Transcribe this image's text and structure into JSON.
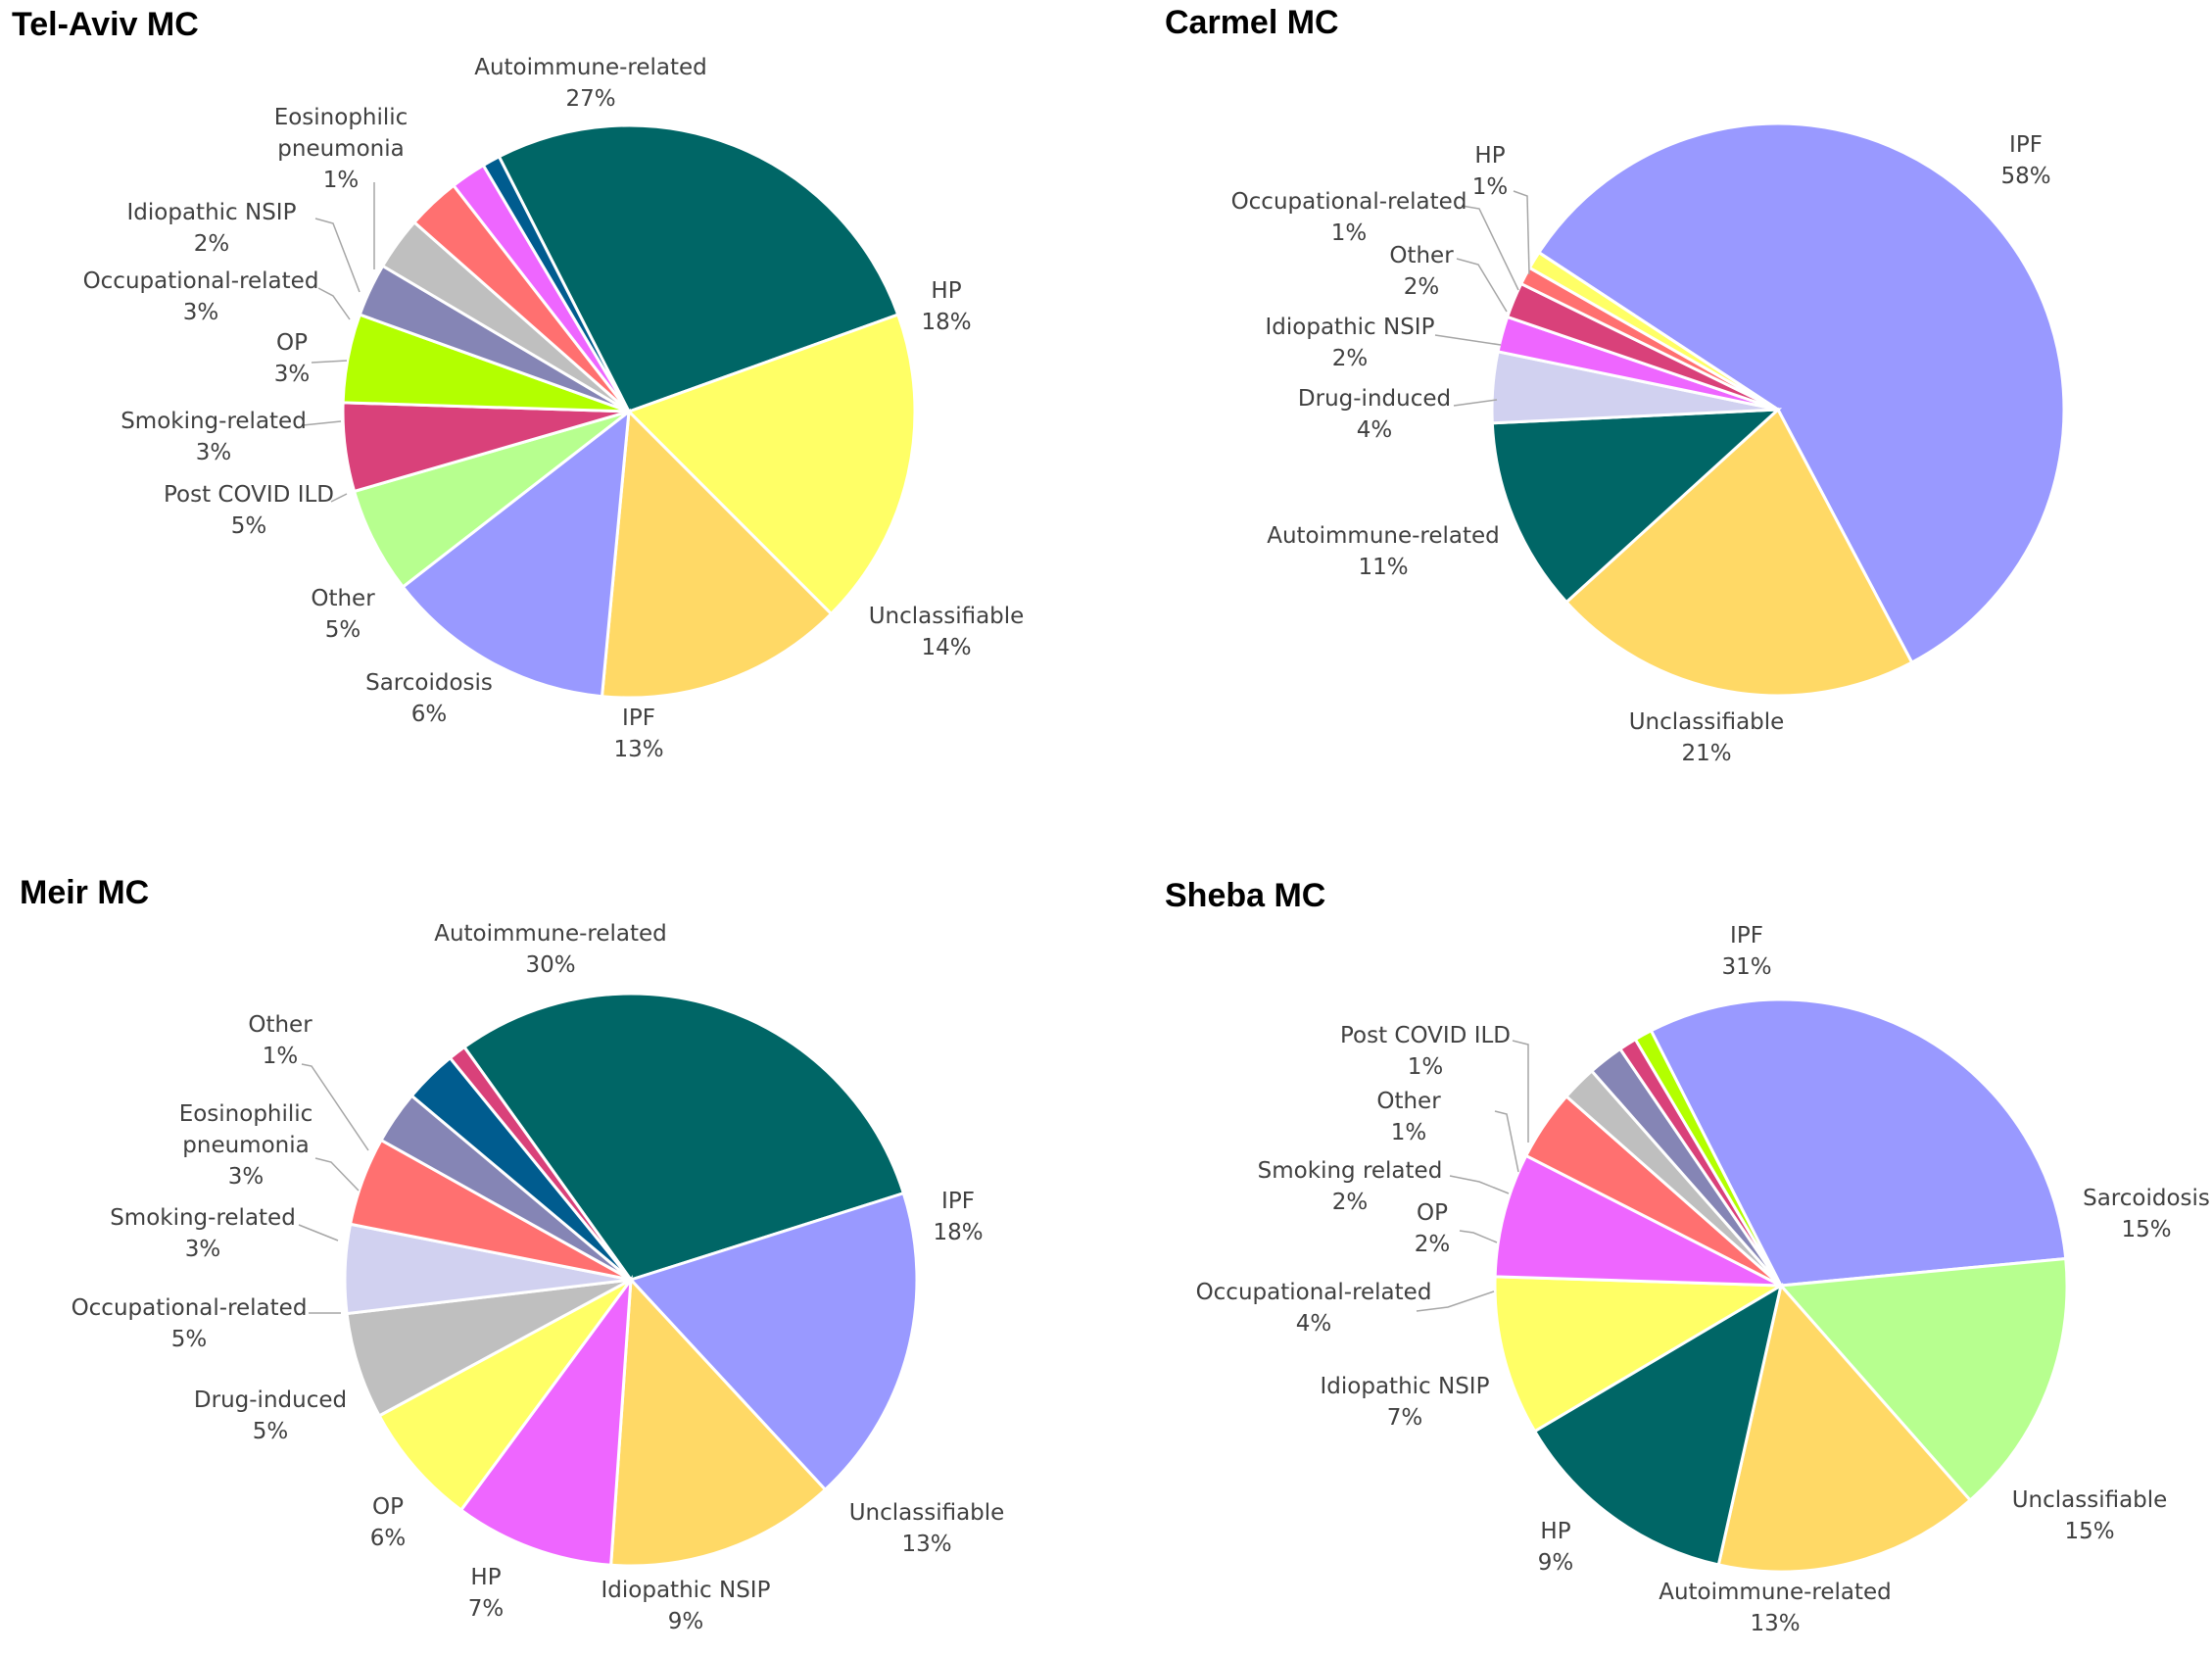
{
  "chart_data": [
    {
      "type": "pie",
      "title": "Tel-Aviv MC",
      "slices": [
        {
          "label": "Autoimmune-related",
          "value": 27,
          "percent": "27%",
          "color": "#006666"
        },
        {
          "label": "HP",
          "value": 18,
          "percent": "18%",
          "color": "#FFFF66"
        },
        {
          "label": "Unclassifiable",
          "value": 14,
          "percent": "14%",
          "color": "#FFD966"
        },
        {
          "label": "IPF",
          "value": 13,
          "percent": "13%",
          "color": "#9999FF"
        },
        {
          "label": "Sarcoidosis",
          "value": 6,
          "percent": "6%",
          "color": "#B7FF8F"
        },
        {
          "label": "Other",
          "value": 5,
          "percent": "5%",
          "color": "#D9417A"
        },
        {
          "label": "Post COVID ILD",
          "value": 5,
          "percent": "5%",
          "color": "#B3FF00"
        },
        {
          "label": "Smoking-related",
          "value": 3,
          "percent": "3%",
          "color": "#8585B5"
        },
        {
          "label": "OP",
          "value": 3,
          "percent": "3%",
          "color": "#BFBFBF"
        },
        {
          "label": "Occupational-related",
          "value": 3,
          "percent": "3%",
          "color": "#FF7070"
        },
        {
          "label": "Idiopathic NSIP",
          "value": 2,
          "percent": "2%",
          "color": "#EE66FF"
        },
        {
          "label": "Eosinophilic pneumonia",
          "label_lines": [
            "Eosinophilic",
            "pneumonia"
          ],
          "value": 1,
          "percent": "1%",
          "color": "#005C8F"
        }
      ]
    },
    {
      "type": "pie",
      "title": "Carmel MC",
      "slices": [
        {
          "label": "IPF",
          "value": 58,
          "percent": "58%",
          "color": "#9999FF"
        },
        {
          "label": "Unclassifiable",
          "value": 21,
          "percent": "21%",
          "color": "#FFD966"
        },
        {
          "label": "Autoimmune-related",
          "value": 11,
          "percent": "11%",
          "color": "#006666"
        },
        {
          "label": "Drug-induced",
          "value": 4,
          "percent": "4%",
          "color": "#D1D1F0"
        },
        {
          "label": "Idiopathic NSIP",
          "value": 2,
          "percent": "2%",
          "color": "#EE66FF"
        },
        {
          "label": "Other",
          "value": 2,
          "percent": "2%",
          "color": "#D9417A"
        },
        {
          "label": "Occupational-related",
          "value": 1,
          "percent": "1%",
          "color": "#FF7070"
        },
        {
          "label": "HP",
          "value": 1,
          "percent": "1%",
          "color": "#FFFF66"
        }
      ]
    },
    {
      "type": "pie",
      "title": "Meir MC",
      "slices": [
        {
          "label": "Autoimmune-related",
          "value": 30,
          "percent": "30%",
          "color": "#006666"
        },
        {
          "label": "IPF",
          "value": 18,
          "percent": "18%",
          "color": "#9999FF"
        },
        {
          "label": "Unclassifiable",
          "value": 13,
          "percent": "13%",
          "color": "#FFD966"
        },
        {
          "label": "Idiopathic NSIP",
          "value": 9,
          "percent": "9%",
          "color": "#EE66FF"
        },
        {
          "label": "HP",
          "value": 7,
          "percent": "7%",
          "color": "#FFFF66"
        },
        {
          "label": "OP",
          "value": 6,
          "percent": "6%",
          "color": "#BFBFBF"
        },
        {
          "label": "Drug-induced",
          "value": 5,
          "percent": "5%",
          "color": "#D1D1F0"
        },
        {
          "label": "Occupational-related",
          "value": 5,
          "percent": "5%",
          "color": "#FF7070"
        },
        {
          "label": "Smoking-related",
          "value": 3,
          "percent": "3%",
          "color": "#8585B5"
        },
        {
          "label": "Eosinophilic pneumonia",
          "label_lines": [
            "Eosinophilic",
            "pneumonia"
          ],
          "value": 3,
          "percent": "3%",
          "color": "#005C8F"
        },
        {
          "label": "Other",
          "value": 1,
          "percent": "1%",
          "color": "#D9417A"
        }
      ]
    },
    {
      "type": "pie",
      "title": "Sheba MC",
      "slices": [
        {
          "label": "IPF",
          "value": 31,
          "percent": "31%",
          "color": "#9999FF"
        },
        {
          "label": "Sarcoidosis",
          "value": 15,
          "percent": "15%",
          "color": "#B7FF8F"
        },
        {
          "label": "Unclassifiable",
          "value": 15,
          "percent": "15%",
          "color": "#FFD966"
        },
        {
          "label": "Autoimmune-related",
          "value": 13,
          "percent": "13%",
          "color": "#006666"
        },
        {
          "label": "HP",
          "value": 9,
          "percent": "9%",
          "color": "#FFFF66"
        },
        {
          "label": "Idiopathic NSIP",
          "value": 7,
          "percent": "7%",
          "color": "#EE66FF"
        },
        {
          "label": "Occupational-related",
          "value": 4,
          "percent": "4%",
          "color": "#FF7070"
        },
        {
          "label": "OP",
          "value": 2,
          "percent": "2%",
          "color": "#BFBFBF"
        },
        {
          "label": "Smoking related",
          "value": 2,
          "percent": "2%",
          "color": "#8585B5"
        },
        {
          "label": "Other",
          "value": 1,
          "percent": "1%",
          "color": "#D9417A"
        },
        {
          "label": "Post COVID ILD",
          "value": 1,
          "percent": "1%",
          "color": "#B3FF00"
        }
      ]
    }
  ]
}
